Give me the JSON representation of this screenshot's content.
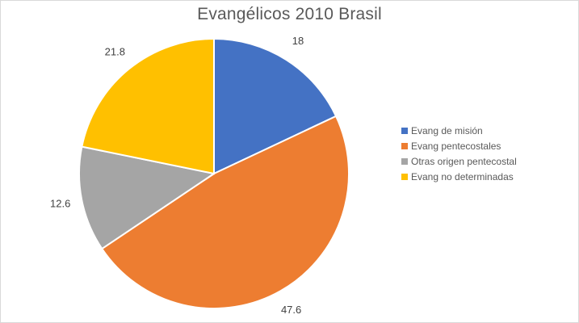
{
  "chart_data": {
    "type": "pie",
    "title": "Evangélicos 2010 Brasil",
    "categories": [
      "Evang de misión",
      "Evang pentecostales",
      "Otras origen pentecostal",
      "Evang no determinadas"
    ],
    "values": [
      18,
      47.6,
      12.6,
      21.8
    ],
    "value_labels": [
      "18",
      "47.6",
      "12.6",
      "21.8"
    ],
    "colors": [
      "#4472c4",
      "#ed7d31",
      "#a5a5a5",
      "#ffc000"
    ],
    "start_angle_deg": 0,
    "direction": "clockwise",
    "legend_position": "right"
  }
}
